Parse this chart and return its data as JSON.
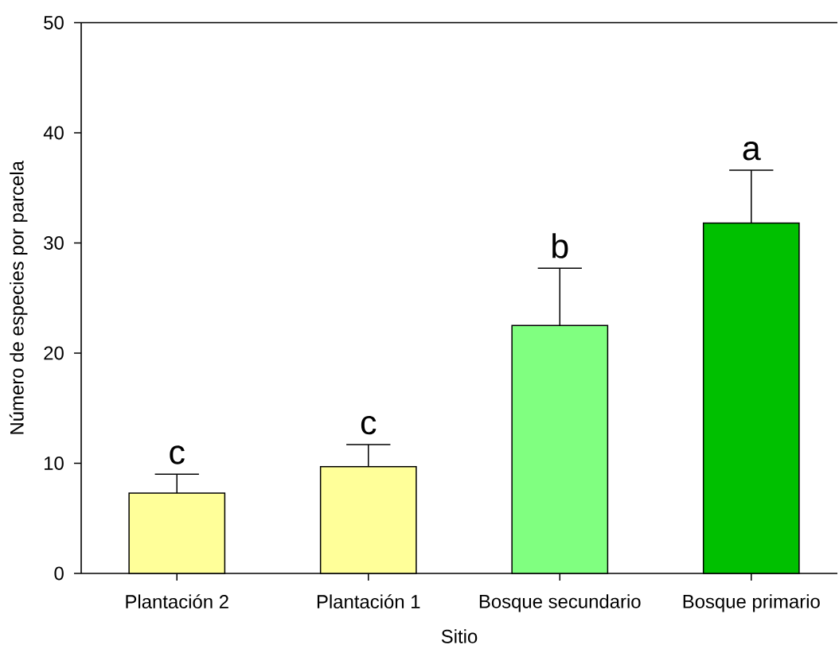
{
  "chart_data": {
    "type": "bar",
    "xlabel": "Sitio",
    "ylabel": "Número de especies por parcela",
    "categories": [
      "Plantación 2",
      "Plantación 1",
      "Bosque secundario",
      "Bosque primario"
    ],
    "values": [
      7.3,
      9.7,
      22.5,
      31.8
    ],
    "colors": [
      "#ffff99",
      "#ffff99",
      "#80ff80",
      "#00c000"
    ],
    "errors": [
      [
        7.3,
        9.0
      ],
      [
        9.7,
        11.7
      ],
      [
        22.5,
        27.7
      ],
      [
        31.8,
        36.6
      ]
    ],
    "ylim": [
      0,
      50
    ],
    "yticks": [
      0,
      10,
      20,
      30,
      40,
      50
    ],
    "annotations": [
      {
        "text": "c",
        "x": "Plantación 2",
        "y": 9.0
      },
      {
        "text": "c",
        "x": "Plantación 1",
        "y": 11.7
      },
      {
        "text": "b",
        "x": "Bosque secundario",
        "y": 27.7
      },
      {
        "text": "a",
        "x": "Bosque primario",
        "y": 36.6
      }
    ]
  }
}
